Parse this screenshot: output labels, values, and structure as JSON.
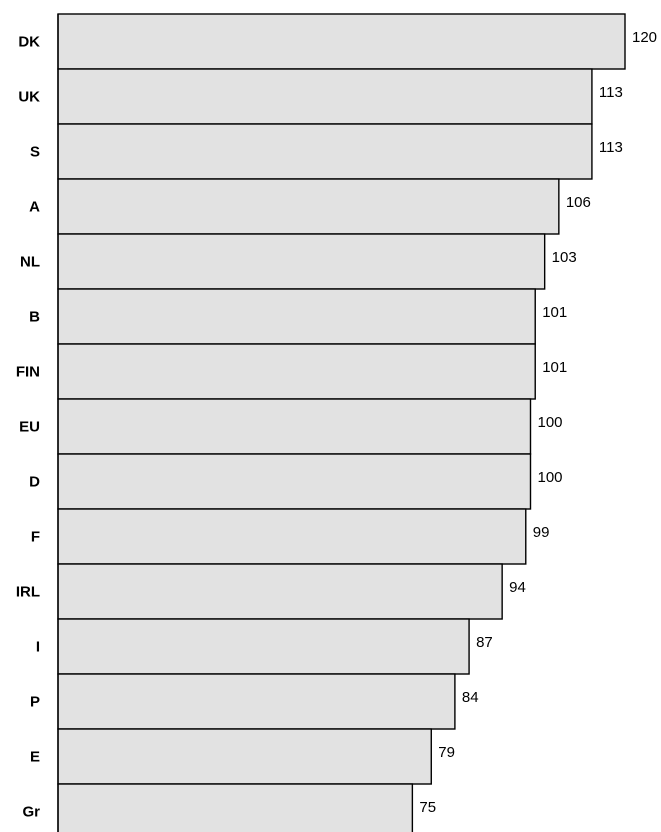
{
  "chart_data": {
    "type": "bar",
    "orientation": "horizontal",
    "categories": [
      "DK",
      "UK",
      "S",
      "A",
      "NL",
      "B",
      "FIN",
      "EU",
      "D",
      "F",
      "IRL",
      "I",
      "P",
      "E",
      "Gr"
    ],
    "values": [
      120,
      113,
      113,
      106,
      103,
      101,
      101,
      100,
      100,
      99,
      94,
      87,
      84,
      79,
      75
    ],
    "data_labels": [
      "120",
      "113",
      "113",
      "106",
      "103",
      "101",
      "101",
      "100",
      "100",
      "99",
      "94",
      "87",
      "84",
      "79",
      "75"
    ],
    "title": "",
    "xlabel": "",
    "ylabel": "",
    "xlim": [
      0,
      120
    ],
    "grid": false,
    "legend": "none",
    "bar_color": "#e2e2e2",
    "bar_edge_color": "#000000"
  }
}
